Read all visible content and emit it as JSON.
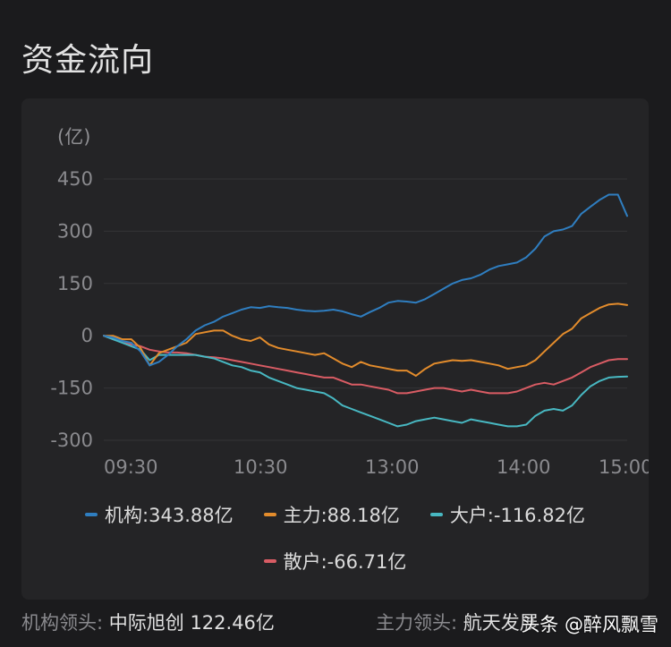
{
  "header": {
    "title": "资金流向"
  },
  "chart_data": {
    "type": "line",
    "unit_label": "(亿)",
    "x_ticks": [
      "09:30",
      "10:30",
      "13:00",
      "14:00",
      "15:00"
    ],
    "y_ticks": [
      450,
      300,
      150,
      0,
      -150,
      -300
    ],
    "ylim": [
      -300,
      450
    ],
    "grid": true,
    "legend_placement": "bottom",
    "series": [
      {
        "name": "机构",
        "legend_label": "机构:343.88亿",
        "color": "#2f7ec0",
        "values": [
          0,
          -5,
          -15,
          -20,
          -45,
          -85,
          -75,
          -55,
          -30,
          -10,
          15,
          30,
          40,
          55,
          65,
          75,
          82,
          80,
          85,
          82,
          80,
          75,
          72,
          70,
          72,
          75,
          70,
          62,
          55,
          68,
          80,
          95,
          100,
          98,
          95,
          105,
          120,
          135,
          150,
          160,
          165,
          175,
          190,
          200,
          205,
          210,
          225,
          250,
          285,
          300,
          305,
          315,
          350,
          370,
          390,
          405,
          405,
          343.88
        ]
      },
      {
        "name": "主力",
        "legend_label": "主力:88.18亿",
        "color": "#e38c2c",
        "values": [
          0,
          0,
          -10,
          -10,
          -35,
          -85,
          -50,
          -40,
          -30,
          -20,
          5,
          10,
          15,
          15,
          0,
          -10,
          -15,
          -5,
          -25,
          -35,
          -40,
          -45,
          -50,
          -55,
          -50,
          -65,
          -80,
          -90,
          -75,
          -85,
          -90,
          -95,
          -100,
          -100,
          -115,
          -95,
          -80,
          -75,
          -70,
          -72,
          -70,
          -75,
          -80,
          -85,
          -95,
          -90,
          -85,
          -70,
          -45,
          -20,
          5,
          20,
          50,
          65,
          80,
          90,
          92,
          88.18
        ]
      },
      {
        "name": "大户",
        "legend_label": "大户:-116.82亿",
        "color": "#48b8c2",
        "values": [
          0,
          -10,
          -20,
          -30,
          -40,
          -70,
          -55,
          -55,
          -55,
          -55,
          -55,
          -60,
          -65,
          -75,
          -85,
          -90,
          -100,
          -105,
          -120,
          -130,
          -140,
          -150,
          -155,
          -160,
          -165,
          -180,
          -200,
          -210,
          -220,
          -230,
          -240,
          -250,
          -260,
          -255,
          -245,
          -240,
          -235,
          -240,
          -245,
          -250,
          -240,
          -245,
          -250,
          -255,
          -260,
          -260,
          -255,
          -230,
          -215,
          -210,
          -215,
          -200,
          -170,
          -145,
          -130,
          -120,
          -118,
          -116.82
        ]
      },
      {
        "name": "散户",
        "legend_label": "散户:-66.71亿",
        "color": "#d95c64",
        "values": [
          0,
          -10,
          -15,
          -25,
          -30,
          -40,
          -45,
          -48,
          -48,
          -50,
          -55,
          -60,
          -62,
          -65,
          -70,
          -75,
          -80,
          -85,
          -90,
          -95,
          -100,
          -105,
          -110,
          -115,
          -120,
          -120,
          -130,
          -140,
          -140,
          -145,
          -150,
          -155,
          -165,
          -165,
          -160,
          -155,
          -150,
          -150,
          -155,
          -160,
          -155,
          -160,
          -165,
          -165,
          -165,
          -160,
          -150,
          -140,
          -135,
          -140,
          -130,
          -120,
          -105,
          -90,
          -80,
          -70,
          -67,
          -66.71
        ]
      }
    ]
  },
  "footer": {
    "left_label": "机构领头:",
    "left_value": "中际旭创 122.46亿",
    "right_label": "主力领头:",
    "right_value": "航天发展"
  },
  "watermark": "头条 @醉风飘雪"
}
